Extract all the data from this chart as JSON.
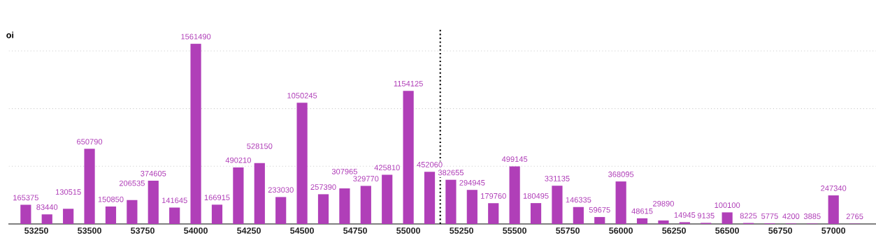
{
  "chart_data": {
    "type": "bar",
    "ylabel": "oi",
    "x": [
      53200,
      53300,
      53400,
      53500,
      53600,
      53700,
      53800,
      53900,
      54000,
      54100,
      54200,
      54300,
      54400,
      54500,
      54600,
      54700,
      54800,
      54900,
      55000,
      55100,
      55200,
      55300,
      55400,
      55500,
      55600,
      55700,
      55800,
      55900,
      56000,
      56100,
      56200,
      56300,
      56400,
      56500,
      56600,
      56700,
      56800,
      56900,
      57000,
      57100
    ],
    "values": [
      165375,
      83440,
      130515,
      650790,
      150850,
      206535,
      374605,
      141645,
      1561490,
      166915,
      490210,
      528150,
      233030,
      1050245,
      257390,
      307965,
      329770,
      425810,
      1154125,
      452060,
      382655,
      294945,
      179760,
      499145,
      180495,
      331135,
      146335,
      59675,
      368095,
      48615,
      29890,
      14945,
      9135,
      100100,
      8225,
      5775,
      4200,
      3885,
      247340,
      2765
    ],
    "color": "#b03fb8",
    "data_labels": true,
    "xlim": [
      53120,
      57200
    ],
    "xticks": [
      53250,
      53500,
      53750,
      54000,
      54250,
      54500,
      54750,
      55000,
      55250,
      55500,
      55750,
      56000,
      56250,
      56500,
      56750,
      57000
    ],
    "ylim": [
      0,
      1700000
    ],
    "yticks": [
      {
        "value": 500000,
        "label": null
      },
      {
        "value": 1000000,
        "label": null
      },
      {
        "value": 1500000,
        "label": null
      }
    ],
    "tick_labels": "x",
    "grid": "y",
    "ref_lines": [
      {
        "axis": "x",
        "value": 55150,
        "label": null,
        "color": "#000000",
        "line_style": "dotted"
      }
    ]
  }
}
